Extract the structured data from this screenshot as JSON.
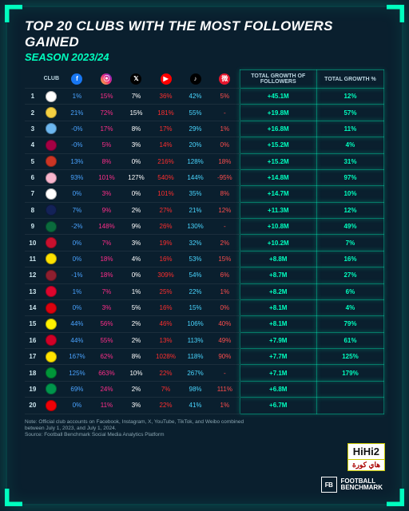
{
  "title": "TOP 20 CLUBS WITH THE MOST FOLLOWERS GAINED",
  "season": "SEASON 2023/24",
  "season_color": "#00ffbf",
  "background": "#0a1f2e",
  "accent": "#00ffbf",
  "headers": {
    "club": "CLUB",
    "total_growth": "TOTAL GROWTH OF FOLLOWERS",
    "total_growth_pct": "TOTAL GROWTH %"
  },
  "platforms": [
    {
      "name": "facebook",
      "glyph": "f",
      "bg": "#1877f2"
    },
    {
      "name": "instagram",
      "glyph": "⦿",
      "bg": "linear-gradient(45deg,#f9ce34,#ee2a7b,#6228d7)"
    },
    {
      "name": "x",
      "glyph": "𝕏",
      "bg": "#000000"
    },
    {
      "name": "youtube",
      "glyph": "▶",
      "bg": "#ff0000"
    },
    {
      "name": "tiktok",
      "glyph": "♪",
      "bg": "#000000"
    },
    {
      "name": "weibo",
      "glyph": "微",
      "bg": "#e6162d"
    }
  ],
  "platform_colors": {
    "facebook": "#4aa3ff",
    "instagram": "#ff2e8a",
    "x": "#ffffff",
    "youtube": "#ff2e2e",
    "tiktok": "#4ad6ff",
    "weibo": "#ff4d4d"
  },
  "growth_color": "#00ffbf",
  "rows": [
    {
      "rank": 1,
      "crest": "#ffffff",
      "fb": "1%",
      "ig": "15%",
      "x": "7%",
      "yt": "36%",
      "tt": "42%",
      "wb": "5%",
      "total": "+45.1M",
      "pct": "12%"
    },
    {
      "rank": 2,
      "crest": "#f5d142",
      "fb": "21%",
      "ig": "72%",
      "x": "15%",
      "yt": "181%",
      "tt": "55%",
      "wb": "-",
      "total": "+19.8M",
      "pct": "57%"
    },
    {
      "rank": 3,
      "crest": "#6cb7f0",
      "fb": "-0%",
      "ig": "17%",
      "x": "8%",
      "yt": "17%",
      "tt": "29%",
      "wb": "1%",
      "total": "+16.8M",
      "pct": "11%"
    },
    {
      "rank": 4,
      "crest": "#a50044",
      "fb": "-0%",
      "ig": "5%",
      "x": "3%",
      "yt": "14%",
      "tt": "20%",
      "wb": "0%",
      "total": "+15.2M",
      "pct": "4%"
    },
    {
      "rank": 5,
      "crest": "#cb3524",
      "fb": "13%",
      "ig": "8%",
      "x": "0%",
      "yt": "216%",
      "tt": "128%",
      "wb": "18%",
      "total": "+15.2M",
      "pct": "31%"
    },
    {
      "rank": 6,
      "crest": "#f7b5cd",
      "fb": "93%",
      "ig": "101%",
      "x": "127%",
      "yt": "540%",
      "tt": "144%",
      "wb": "-95%",
      "total": "+14.8M",
      "pct": "97%"
    },
    {
      "rank": 7,
      "crest": "#ffffff",
      "fb": "0%",
      "ig": "3%",
      "x": "0%",
      "yt": "101%",
      "tt": "35%",
      "wb": "8%",
      "total": "+14.7M",
      "pct": "10%"
    },
    {
      "rank": 8,
      "crest": "#132257",
      "fb": "7%",
      "ig": "9%",
      "x": "2%",
      "yt": "27%",
      "tt": "21%",
      "wb": "12%",
      "total": "+11.3M",
      "pct": "12%"
    },
    {
      "rank": 9,
      "crest": "#0a6b3d",
      "fb": "-2%",
      "ig": "148%",
      "x": "9%",
      "yt": "26%",
      "tt": "130%",
      "wb": "-",
      "total": "+10.8M",
      "pct": "49%"
    },
    {
      "rank": 10,
      "crest": "#c8102e",
      "fb": "0%",
      "ig": "7%",
      "x": "3%",
      "yt": "19%",
      "tt": "32%",
      "wb": "2%",
      "total": "+10.2M",
      "pct": "7%"
    },
    {
      "rank": 11,
      "crest": "#fde100",
      "fb": "0%",
      "ig": "18%",
      "x": "4%",
      "yt": "16%",
      "tt": "53%",
      "wb": "15%",
      "total": "+8.8M",
      "pct": "16%"
    },
    {
      "rank": 12,
      "crest": "#8e1f2f",
      "fb": "-1%",
      "ig": "18%",
      "x": "0%",
      "yt": "309%",
      "tt": "54%",
      "wb": "6%",
      "total": "+8.7M",
      "pct": "27%"
    },
    {
      "rank": 13,
      "crest": "#dc052d",
      "fb": "1%",
      "ig": "7%",
      "x": "1%",
      "yt": "25%",
      "tt": "22%",
      "wb": "1%",
      "total": "+8.2M",
      "pct": "6%"
    },
    {
      "rank": 14,
      "crest": "#da020e",
      "fb": "0%",
      "ig": "3%",
      "x": "5%",
      "yt": "16%",
      "tt": "15%",
      "wb": "0%",
      "total": "+8.1M",
      "pct": "4%"
    },
    {
      "rank": 15,
      "crest": "#fff200",
      "fb": "44%",
      "ig": "56%",
      "x": "2%",
      "yt": "46%",
      "tt": "106%",
      "wb": "40%",
      "total": "+8.1M",
      "pct": "79%"
    },
    {
      "rank": 16,
      "crest": "#d00027",
      "fb": "44%",
      "ig": "55%",
      "x": "2%",
      "yt": "13%",
      "tt": "113%",
      "wb": "49%",
      "total": "+7.9M",
      "pct": "61%"
    },
    {
      "rank": 17,
      "crest": "#ffe400",
      "fb": "167%",
      "ig": "62%",
      "x": "8%",
      "yt": "1028%",
      "tt": "118%",
      "wb": "90%",
      "total": "+7.7M",
      "pct": "125%"
    },
    {
      "rank": 18,
      "crest": "#009639",
      "fb": "125%",
      "ig": "663%",
      "x": "10%",
      "yt": "22%",
      "tt": "267%",
      "wb": "-",
      "total": "+7.1M",
      "pct": "179%"
    },
    {
      "rank": 19,
      "crest": "#00954c",
      "fb": "69%",
      "ig": "24%",
      "x": "2%",
      "yt": "7%",
      "tt": "98%",
      "wb": "111%",
      "total": "+6.8M",
      "pct": ""
    },
    {
      "rank": 20,
      "crest": "#ef0107",
      "fb": "0%",
      "ig": "11%",
      "x": "3%",
      "yt": "22%",
      "tt": "41%",
      "wb": "1%",
      "total": "+6.7M",
      "pct": ""
    }
  ],
  "note_line1": "Note: Official club accounts on Facebook, Instagram, X, YouTube, TikTok, and Weibo combined",
  "note_line2": "between July 1, 2023, and July 1, 2024.",
  "note_line3": "Source: Football Benchmark Social Media Analytics Platform",
  "brand_short": "FB",
  "brand_line1": "FOOTBALL",
  "brand_line2": "BENCHMARK",
  "watermark_main": "HiHi2",
  "watermark_sub": "هاي كورة"
}
